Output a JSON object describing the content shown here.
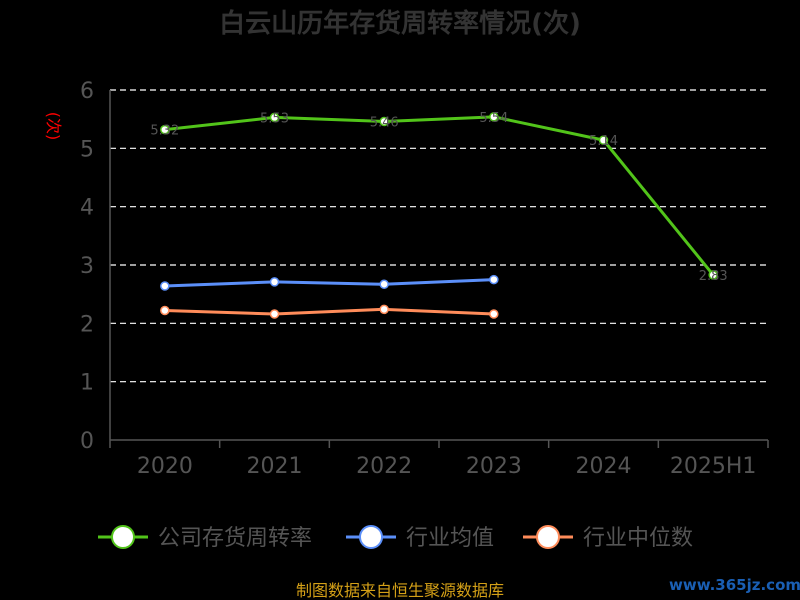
{
  "chart_data": {
    "type": "line",
    "title": "白云山历年存货周转率情况(次)",
    "ylabel": "(次)",
    "ylim": [
      0,
      6
    ],
    "yticks": [
      0,
      1,
      2,
      3,
      4,
      5,
      6
    ],
    "grid": true,
    "legend_position": "bottom-center",
    "categories": [
      "2020",
      "2021",
      "2022",
      "2023",
      "2024",
      "2025H1"
    ],
    "series": [
      {
        "name": "公司存货周转率",
        "color": "#52c41a",
        "values": [
          5.32,
          5.53,
          5.46,
          5.54,
          5.14,
          2.83
        ],
        "point_labels": [
          "5.32",
          "5.53",
          "5.46",
          "5.54",
          "5.14",
          "2.83"
        ]
      },
      {
        "name": "行业均值",
        "color": "#5b8ff9",
        "values": [
          2.64,
          2.71,
          2.67,
          2.75,
          null,
          null
        ]
      },
      {
        "name": "行业中位数",
        "color": "#ff8c5a",
        "values": [
          2.22,
          2.16,
          2.24,
          2.16,
          null,
          null
        ]
      }
    ]
  },
  "footer": {
    "source": "制图数据来自恒生聚源数据库"
  },
  "watermark": "www.365jz.com",
  "colors": {
    "title": "#333333",
    "axis": "#555555",
    "grid": "#ffffff",
    "ylabel": "#ff0000",
    "footer": "#d4a017",
    "watermark": "#1a5fb4"
  }
}
